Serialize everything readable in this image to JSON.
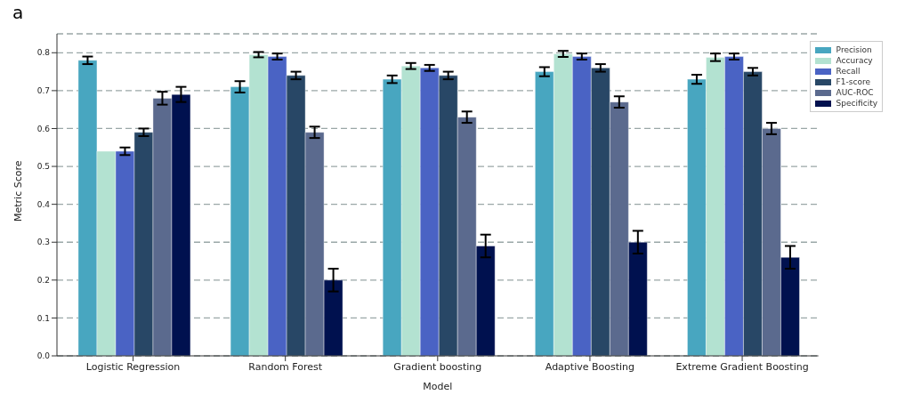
{
  "chart_data": {
    "type": "bar",
    "xlabel": "Model",
    "ylabel": "Metric Score",
    "annotations": [
      "a"
    ],
    "categories": [
      "Logistic Regression",
      "Random Forest",
      "Gradient boosting",
      "Adaptive Boosting",
      "Extreme Gradient Boosting"
    ],
    "series": [
      {
        "name": "Precision",
        "color": "#48a6c0",
        "values": [
          0.78,
          0.71,
          0.73,
          0.75,
          0.73
        ],
        "errors": [
          0.01,
          0.015,
          0.01,
          0.012,
          0.012
        ]
      },
      {
        "name": "Accuracy",
        "color": "#b3e2d1",
        "values": [
          0.54,
          0.795,
          0.765,
          0.797,
          0.788
        ],
        "errors": [
          0,
          0.007,
          0.008,
          0.008,
          0.01
        ]
      },
      {
        "name": "Recall",
        "color": "#4a63c4",
        "values": [
          0.54,
          0.79,
          0.76,
          0.79,
          0.79
        ],
        "errors": [
          0.01,
          0.008,
          0.008,
          0.008,
          0.008
        ]
      },
      {
        "name": "F1-score",
        "color": "#284766",
        "values": [
          0.59,
          0.74,
          0.74,
          0.76,
          0.75
        ],
        "errors": [
          0.01,
          0.01,
          0.01,
          0.01,
          0.01
        ]
      },
      {
        "name": "AUC-ROC",
        "color": "#5b6a8e",
        "values": [
          0.68,
          0.59,
          0.63,
          0.67,
          0.6
        ],
        "errors": [
          0.017,
          0.015,
          0.015,
          0.015,
          0.015
        ]
      },
      {
        "name": "Specificity",
        "color": "#00114f",
        "values": [
          0.69,
          0.2,
          0.29,
          0.3,
          0.26
        ],
        "errors": [
          0.02,
          0.03,
          0.03,
          0.03,
          0.03
        ]
      }
    ],
    "ylim": [
      0,
      0.85
    ],
    "yticks": [
      {
        "value": 0,
        "label": "0.0"
      },
      0.1,
      0.2,
      0.3,
      0.4,
      0.5,
      0.6,
      0.7,
      0.8
    ],
    "grid": "y",
    "legend": "top right"
  }
}
